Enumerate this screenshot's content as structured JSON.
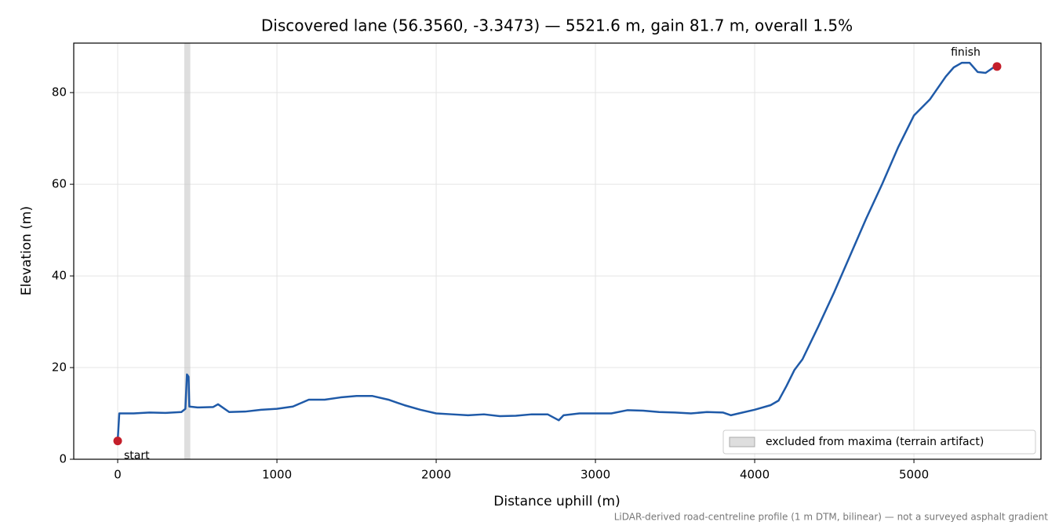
{
  "chart_data": {
    "type": "line",
    "title": "Discovered lane (56.3560, -3.3473) — 5521.6 m, gain 81.7 m, overall 1.5%",
    "xlabel": "Distance uphill (m)",
    "ylabel": "Elevation (m)",
    "footnote": "LiDAR-derived road-centreline profile (1 m DTM, bilinear) — not a surveyed asphalt gradient",
    "xlim": [
      -276,
      5797.7
    ],
    "ylim": [
      0,
      90.8
    ],
    "xticks": [
      0,
      1000,
      2000,
      3000,
      4000,
      5000
    ],
    "yticks": [
      0,
      20,
      40,
      60,
      80
    ],
    "grid": true,
    "legend": "lower right",
    "span": {
      "label": "excluded from maxima (terrain artifact)",
      "x": [
        418,
        456
      ],
      "color": "#c8c8c8"
    },
    "series": [
      {
        "color": "#1f5aa8",
        "x": [
          0,
          10,
          100,
          200,
          300,
          400,
          425,
          435,
          445,
          450,
          500,
          600,
          630,
          700,
          800,
          900,
          1000,
          1100,
          1200,
          1300,
          1400,
          1500,
          1600,
          1700,
          1800,
          1900,
          2000,
          2100,
          2200,
          2300,
          2400,
          2500,
          2600,
          2700,
          2770,
          2800,
          2900,
          3000,
          3100,
          3200,
          3300,
          3400,
          3500,
          3600,
          3700,
          3800,
          3850,
          3900,
          4000,
          4100,
          4150,
          4200,
          4250,
          4300,
          4400,
          4500,
          4600,
          4700,
          4800,
          4900,
          5000,
          5100,
          5200,
          5250,
          5300,
          5350,
          5400,
          5450,
          5500,
          5521.6
        ],
        "values": [
          4,
          10,
          10,
          10.2,
          10.1,
          10.3,
          11,
          18.5,
          18,
          11.5,
          11.3,
          11.4,
          12,
          10.3,
          10.4,
          10.8,
          11,
          11.5,
          13,
          13,
          13.5,
          13.8,
          13.8,
          13,
          11.8,
          10.8,
          10,
          9.8,
          9.6,
          9.8,
          9.4,
          9.5,
          9.8,
          9.8,
          8.5,
          9.6,
          10,
          10,
          10,
          10.7,
          10.6,
          10.3,
          10.2,
          10,
          10.3,
          10.2,
          9.6,
          10,
          10.8,
          11.8,
          12.8,
          16,
          19.5,
          21.8,
          29,
          36.5,
          44.5,
          52.5,
          60,
          68,
          75,
          78.5,
          83.5,
          85.5,
          86.5,
          86.5,
          84.5,
          84.3,
          85.5,
          85.7
        ]
      }
    ],
    "markers": [
      {
        "label": "start",
        "x": 0,
        "y": 4,
        "color": "#c41e2a"
      },
      {
        "label": "finish",
        "x": 5521.6,
        "y": 85.7,
        "color": "#c41e2a"
      }
    ]
  }
}
